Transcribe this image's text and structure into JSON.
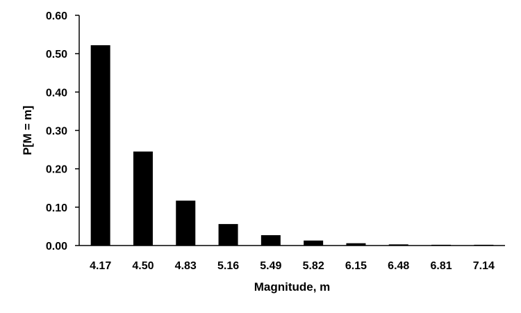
{
  "chart_data": {
    "type": "bar",
    "title": "",
    "xlabel": "Magnitude, m",
    "ylabel": "P[M = m]",
    "categories": [
      "4.17",
      "4.50",
      "4.83",
      "5.16",
      "5.49",
      "5.82",
      "6.15",
      "6.48",
      "6.81",
      "7.14"
    ],
    "values": [
      0.522,
      0.245,
      0.117,
      0.056,
      0.027,
      0.013,
      0.006,
      0.003,
      0.002,
      0.002
    ],
    "ylim": [
      0,
      0.6
    ],
    "yticks": [
      "0.00",
      "0.10",
      "0.20",
      "0.30",
      "0.40",
      "0.50",
      "0.60"
    ],
    "grid": false,
    "legend": "none",
    "bar_color": "#000000"
  }
}
